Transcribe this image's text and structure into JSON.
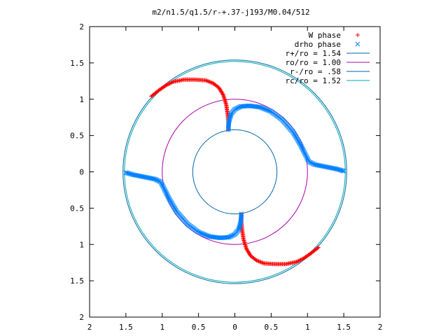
{
  "chart_data": {
    "type": "scatter",
    "title": "m2/n1.5/q1.5/r-+.37-j193/M0.04/512",
    "xlim": [
      -2,
      2
    ],
    "ylim": [
      -2,
      2
    ],
    "x_ticks": [
      -2,
      -1.5,
      -1,
      -0.5,
      0,
      0.5,
      1,
      1.5,
      2
    ],
    "y_ticks": [
      -2,
      -1.5,
      -1,
      -0.5,
      0,
      0.5,
      1,
      1.5,
      2
    ],
    "x_tick_labels": [
      "2",
      "1.5",
      "1",
      "0.5",
      "0",
      "0.5",
      "1",
      "1.5",
      "2"
    ],
    "y_tick_labels": [
      "2",
      "1.5",
      "1",
      "0.5",
      "0",
      "0.5",
      "1",
      "1.5",
      "2"
    ],
    "grid": false,
    "legend_position": "top-right",
    "series": [
      {
        "name": "W phase",
        "marker": "plus",
        "color": "#ff0000",
        "arms": [
          {
            "x": [
              -1.15,
              -1.05,
              -0.95,
              -0.85,
              -0.7,
              -0.55,
              -0.4,
              -0.3,
              -0.22,
              -0.16,
              -0.12,
              -0.1,
              -0.09,
              -0.09
            ],
            "y": [
              1.04,
              1.12,
              1.19,
              1.24,
              1.27,
              1.27,
              1.26,
              1.22,
              1.16,
              1.06,
              0.93,
              0.8,
              0.68,
              0.58
            ]
          },
          {
            "x": [
              1.15,
              1.05,
              0.95,
              0.85,
              0.7,
              0.55,
              0.4,
              0.3,
              0.22,
              0.16,
              0.12,
              0.1,
              0.09,
              0.09
            ],
            "y": [
              -1.04,
              -1.12,
              -1.19,
              -1.24,
              -1.27,
              -1.27,
              -1.26,
              -1.22,
              -1.16,
              -1.06,
              -0.93,
              -0.8,
              -0.68,
              -0.58
            ]
          }
        ]
      },
      {
        "name": "drho phase",
        "marker": "x",
        "color": "#0080ff",
        "arms": [
          {
            "x": [
              -0.09,
              -0.08,
              -0.05,
              0.0,
              0.08,
              0.2,
              0.35,
              0.5,
              0.65,
              0.8,
              0.9,
              0.97,
              1.02,
              1.1,
              1.25,
              1.4,
              1.5
            ],
            "y": [
              0.58,
              0.7,
              0.8,
              0.86,
              0.9,
              0.91,
              0.89,
              0.83,
              0.72,
              0.55,
              0.38,
              0.24,
              0.14,
              0.1,
              0.07,
              0.04,
              0.01
            ]
          },
          {
            "x": [
              0.09,
              0.08,
              0.05,
              0.0,
              -0.08,
              -0.2,
              -0.35,
              -0.5,
              -0.65,
              -0.8,
              -0.9,
              -0.97,
              -1.02,
              -1.1,
              -1.25,
              -1.4,
              -1.5
            ],
            "y": [
              -0.58,
              -0.7,
              -0.8,
              -0.86,
              -0.9,
              -0.91,
              -0.89,
              -0.83,
              -0.72,
              -0.55,
              -0.38,
              -0.24,
              -0.14,
              -0.1,
              -0.07,
              -0.04,
              -0.01
            ]
          }
        ]
      },
      {
        "name": "r+/ro = 1.54",
        "marker": "circle",
        "color": "#0066aa",
        "radius": 1.54
      },
      {
        "name": "ro/ro = 1.00",
        "marker": "circle",
        "color": "#aa00aa",
        "radius": 1.0
      },
      {
        "name": "r-/ro = .58",
        "marker": "circle",
        "color": "#0066aa",
        "radius": 0.58
      },
      {
        "name": "rc/ro = 1.52",
        "marker": "circle",
        "color": "#00aaaa",
        "radius": 1.52
      }
    ]
  }
}
